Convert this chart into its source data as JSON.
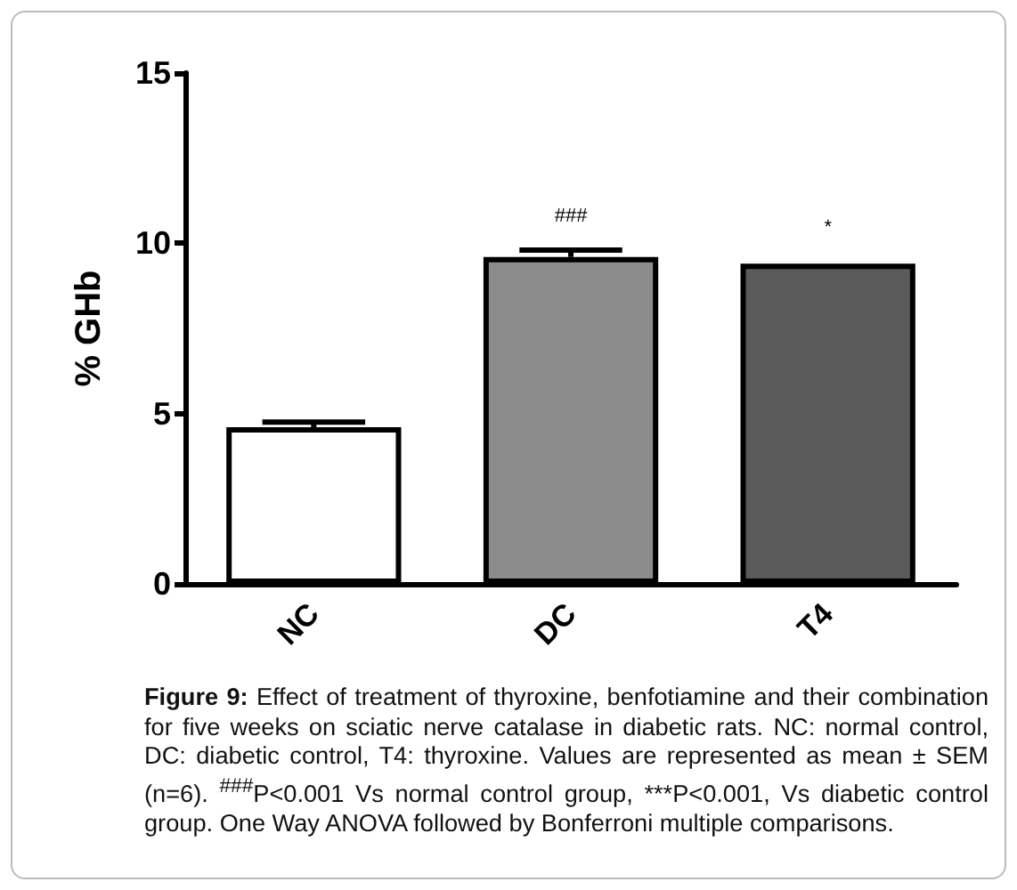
{
  "chart_data": {
    "type": "bar",
    "ylabel": "% GHb",
    "categories": [
      "NC",
      "DC",
      "T4"
    ],
    "values": [
      4.6,
      9.6,
      9.4
    ],
    "errors": [
      [
        4.6,
        4.75
      ],
      [
        9.6,
        9.8
      ],
      null
    ],
    "colors": [
      "#ffffff",
      "#8c8c8c",
      "#5a5a5a"
    ],
    "ylim": [
      0,
      15
    ],
    "yticks": [
      0,
      5,
      10,
      15
    ],
    "grid": false,
    "annotations": [
      {
        "text": "###",
        "x": "DC",
        "y": 9.75
      },
      {
        "text": "*",
        "x": "T4",
        "y": 9.4
      },
      "Figure 9: Effect of treatment of thyroxine, benfotiamine and their combination for five weeks on sciatic nerve catalase in diabetic rats. NC: normal control, DC: diabetic control, T4: thyroxine. Values are represented as mean ± SEM (n=6). $^{###}$P<0.001 Vs normal control group, ***P<0.001, Vs diabetic control group. One Way ANOVA followed by Bonferroni multiple comparisons."
    ]
  }
}
